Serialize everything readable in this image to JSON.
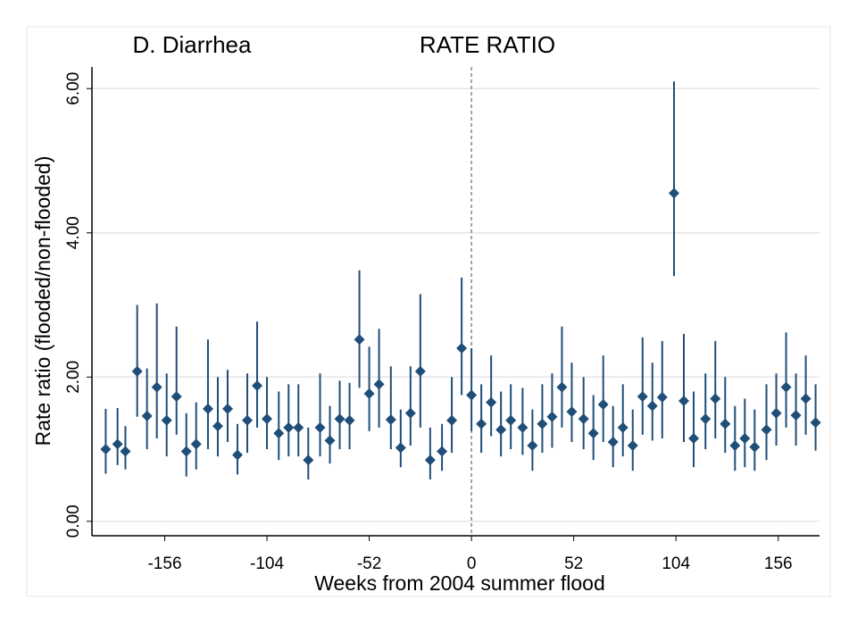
{
  "chart_data": {
    "type": "scatter",
    "title": "D. Diarrhea",
    "subtitle": "RATE RATIO",
    "x_label": "Weeks from 2004 summer flood",
    "y_label": "Rate ratio (flooded/non-flooded)",
    "xlim": [
      -193,
      177
    ],
    "ylim": [
      -0.2,
      6.3
    ],
    "xticks": [
      -156,
      -104,
      -52,
      0,
      52,
      104,
      156
    ],
    "yticks": [
      {
        "value": 0,
        "label": "0.00"
      },
      {
        "value": 2,
        "label": "2.00"
      },
      {
        "value": 4,
        "label": "4.00"
      },
      {
        "value": 6,
        "label": "6.00"
      }
    ],
    "grid": true,
    "reference_line_x": 0,
    "color": "#1f4e79",
    "x": [
      -186,
      -180,
      -176,
      -170,
      -165,
      -160,
      -155,
      -150,
      -145,
      -140,
      -134,
      -129,
      -124,
      -119,
      -114,
      -109,
      -104,
      -98,
      -93,
      -88,
      -83,
      -77,
      -72,
      -67,
      -62,
      -57,
      -52,
      -47,
      -41,
      -36,
      -31,
      -26,
      -21,
      -15,
      -10,
      -5,
      0,
      5,
      10,
      15,
      20,
      26,
      31,
      36,
      41,
      46,
      51,
      57,
      62,
      67,
      72,
      77,
      82,
      87,
      92,
      97,
      103,
      108,
      113,
      119,
      124,
      129,
      134,
      139,
      144,
      150,
      155,
      160,
      165,
      170,
      175
    ],
    "values": [
      1.0,
      1.07,
      0.97,
      2.08,
      1.46,
      1.86,
      1.4,
      1.73,
      0.97,
      1.07,
      1.56,
      1.32,
      1.56,
      0.92,
      1.4,
      1.88,
      1.42,
      1.22,
      1.3,
      1.3,
      0.85,
      1.3,
      1.12,
      1.42,
      1.4,
      2.52,
      1.77,
      1.9,
      1.41,
      1.02,
      1.5,
      2.08,
      0.85,
      0.97,
      1.4,
      2.4,
      1.75,
      1.35,
      1.65,
      1.27,
      1.4,
      1.3,
      1.05,
      1.35,
      1.45,
      1.86,
      1.52,
      1.42,
      1.22,
      1.62,
      1.1,
      1.3,
      1.05,
      1.73,
      1.6,
      1.72,
      4.55,
      1.67,
      1.15,
      1.42,
      1.7,
      1.35,
      1.05,
      1.15,
      1.03,
      1.27,
      1.5,
      1.86,
      1.47,
      1.7,
      1.37
    ],
    "lower": [
      0.66,
      0.78,
      0.72,
      1.45,
      1.0,
      1.15,
      0.9,
      1.2,
      0.62,
      0.72,
      1.0,
      0.9,
      1.1,
      0.65,
      0.95,
      1.3,
      1.0,
      0.85,
      0.9,
      0.9,
      0.58,
      0.9,
      0.8,
      1.0,
      1.0,
      1.85,
      1.25,
      1.3,
      1.0,
      0.75,
      1.05,
      1.3,
      0.58,
      0.7,
      0.95,
      1.75,
      1.25,
      0.95,
      1.18,
      0.9,
      1.0,
      0.92,
      0.7,
      0.95,
      1.02,
      1.3,
      1.1,
      1.0,
      0.85,
      1.1,
      0.75,
      0.9,
      0.7,
      1.2,
      1.12,
      1.15,
      3.4,
      1.1,
      0.75,
      1.0,
      1.15,
      0.95,
      0.7,
      0.75,
      0.7,
      0.85,
      1.05,
      1.3,
      1.05,
      1.2,
      0.98
    ],
    "upper": [
      1.56,
      1.57,
      1.32,
      3.0,
      2.12,
      3.02,
      2.05,
      2.7,
      1.5,
      1.65,
      2.52,
      2.0,
      2.1,
      1.35,
      2.05,
      2.77,
      2.0,
      1.8,
      1.9,
      1.9,
      1.3,
      2.05,
      1.6,
      1.95,
      1.92,
      3.48,
      2.42,
      2.67,
      2.15,
      1.55,
      2.15,
      3.15,
      1.3,
      1.35,
      2.0,
      3.38,
      2.4,
      1.9,
      2.3,
      1.8,
      1.9,
      1.85,
      1.55,
      1.9,
      2.05,
      2.7,
      2.2,
      2.0,
      1.75,
      2.3,
      1.6,
      1.9,
      1.55,
      2.55,
      2.2,
      2.5,
      6.1,
      2.6,
      1.8,
      2.05,
      2.5,
      2.0,
      1.6,
      1.7,
      1.55,
      1.9,
      2.05,
      2.62,
      2.05,
      2.3,
      1.9
    ]
  }
}
